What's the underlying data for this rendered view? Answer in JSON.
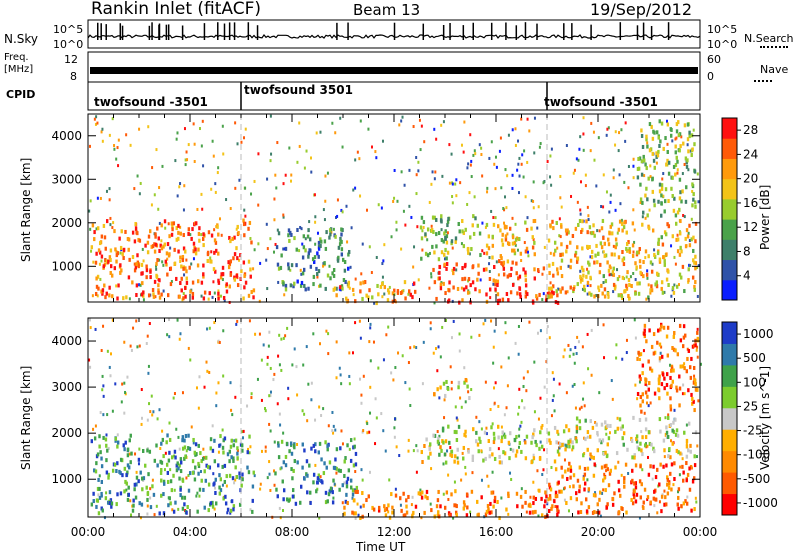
{
  "header": {
    "station": "Rankin Inlet (fitACF)",
    "beam": "Beam 13",
    "date": "19/Sep/2012"
  },
  "strips": {
    "nsky_label": "N.Sky",
    "nsearch_label": "N.Search",
    "freq_label": "Freq.",
    "freq_unit": "[MHz]",
    "nave_label": "Nave",
    "cpid_label": "CPID",
    "noise_ticks": [
      "10^5",
      "10^0"
    ],
    "freq_ticks": [
      "12",
      "8"
    ],
    "nave_ticks": [
      "60",
      "0"
    ],
    "cpid_segments": [
      {
        "label": "twofsound -3501",
        "start_hour": 0
      },
      {
        "label": "twofsound 3501",
        "start_hour": 6
      },
      {
        "label": "twofsound -3501",
        "start_hour": 18
      }
    ]
  },
  "chart_data": [
    {
      "type": "heatmap",
      "title": "",
      "ylabel": "Slant Range [km]",
      "xlabel": "",
      "xlim_hours": [
        0,
        24
      ],
      "ylim_km": [
        180,
        4500
      ],
      "yticks": [
        1000,
        2000,
        3000,
        4000
      ],
      "colorbar": {
        "label": "Power [dB]",
        "ticks": [
          4,
          8,
          12,
          16,
          20,
          24,
          28
        ],
        "range": [
          0,
          30
        ],
        "colors": [
          "#0a1eff",
          "#2f52a8",
          "#3e7f6a",
          "#4aa24a",
          "#98cc2e",
          "#f3c318",
          "#ff9a0c",
          "#ff5a08",
          "#ff1010"
        ]
      },
      "regions": [
        {
          "start": 0.1,
          "end": 6.5,
          "from_km": 300,
          "to_km": 2100,
          "level": 0.85
        },
        {
          "start": 7.3,
          "end": 10.2,
          "from_km": 500,
          "to_km": 1900,
          "level": 0.25
        },
        {
          "start": 9.5,
          "end": 13.0,
          "from_km": 200,
          "to_km": 700,
          "level": 0.75
        },
        {
          "start": 13.0,
          "end": 15.5,
          "from_km": 1200,
          "to_km": 2200,
          "level": 0.45
        },
        {
          "start": 13.5,
          "end": 18.5,
          "from_km": 200,
          "to_km": 1100,
          "level": 0.9
        },
        {
          "start": 15.5,
          "end": 17.5,
          "from_km": 1100,
          "to_km": 2100,
          "level": 0.7
        },
        {
          "start": 18.0,
          "end": 23.8,
          "from_km": 300,
          "to_km": 2100,
          "level": 0.65
        },
        {
          "start": 21.5,
          "end": 23.8,
          "from_km": 2200,
          "to_km": 4400,
          "level": 0.45
        }
      ]
    },
    {
      "type": "heatmap",
      "title": "",
      "ylabel": "Slant Range [km]",
      "xlabel": "Time UT",
      "xlim_hours": [
        0,
        24
      ],
      "ylim_km": [
        180,
        4500
      ],
      "yticks": [
        1000,
        2000,
        3000,
        4000
      ],
      "xticks": [
        "00:00",
        "04:00",
        "08:00",
        "12:00",
        "16:00",
        "20:00",
        "00:00"
      ],
      "colorbar": {
        "label": "Velocity [m s^-1]",
        "ticks": [
          1000,
          500,
          100,
          25,
          -25,
          -100,
          -500,
          -1000
        ],
        "range": [
          -1000,
          1000
        ],
        "colors": [
          "#ff0000",
          "#ff5a00",
          "#ff8a00",
          "#ffae00",
          "#c8c8c8",
          "#7ccc2e",
          "#3fa24a",
          "#2f7aaa",
          "#1e3cc8"
        ]
      },
      "regions": [
        {
          "start": 0.1,
          "end": 6.5,
          "from_km": 300,
          "to_km": 2000,
          "level": 0.8
        },
        {
          "start": 7.3,
          "end": 10.5,
          "from_km": 500,
          "to_km": 1900,
          "level": 0.85
        },
        {
          "start": 10.0,
          "end": 18.5,
          "from_km": 200,
          "to_km": 800,
          "level": 0.2
        },
        {
          "start": 13.0,
          "end": 18.5,
          "from_km": 1400,
          "to_km": 2200,
          "level": 0.5
        },
        {
          "start": 13.5,
          "end": 15.0,
          "from_km": 2800,
          "to_km": 3200,
          "level": 0.5
        },
        {
          "start": 18.0,
          "end": 23.8,
          "from_km": 300,
          "to_km": 1400,
          "level": 0.15
        },
        {
          "start": 18.5,
          "end": 23.8,
          "from_km": 1500,
          "to_km": 2400,
          "level": 0.5
        },
        {
          "start": 21.5,
          "end": 23.9,
          "from_km": 2500,
          "to_km": 4400,
          "level": 0.2
        }
      ]
    }
  ]
}
